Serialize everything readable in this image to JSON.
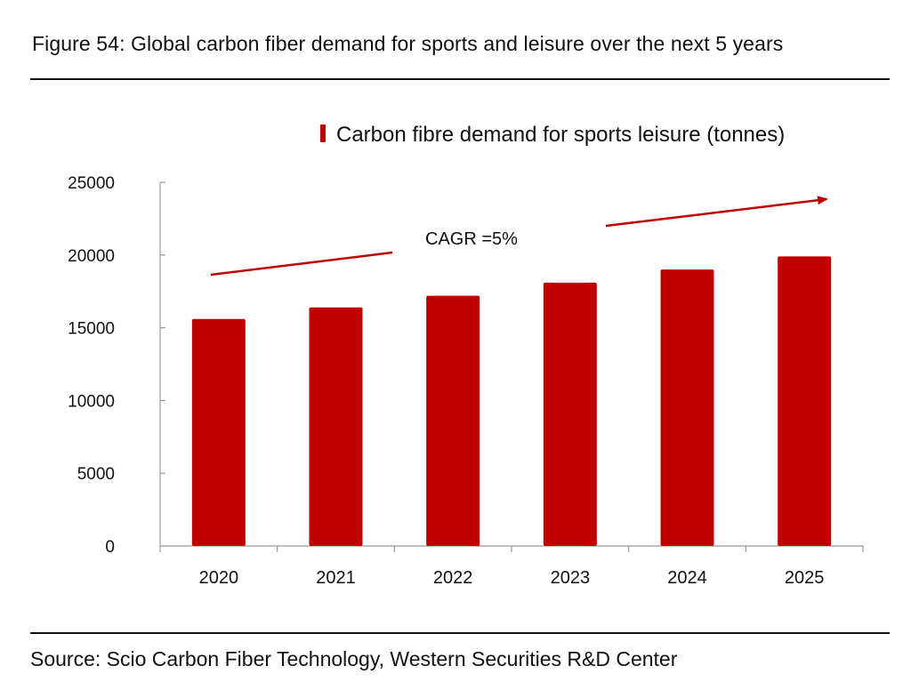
{
  "figure": {
    "title": "Figure 54: Global carbon fiber demand for sports and leisure over the next 5 years",
    "source": "Source: Scio Carbon Fiber Technology, Western Securities R&D Center"
  },
  "chart_data": {
    "type": "bar",
    "categories": [
      "2020",
      "2021",
      "2022",
      "2023",
      "2024",
      "2025"
    ],
    "series": [
      {
        "name": "Carbon fibre demand for sports leisure (tonnes)",
        "values": [
          15600,
          16400,
          17200,
          18100,
          19000,
          19900
        ],
        "color": "#c00000"
      }
    ],
    "ylim": [
      0,
      25000
    ],
    "yticks": [
      0,
      5000,
      10000,
      15000,
      20000,
      25000
    ],
    "annotation": "CAGR =5%",
    "annotation_color": "#c00000",
    "legend_position": "top-right",
    "grid": false
  }
}
